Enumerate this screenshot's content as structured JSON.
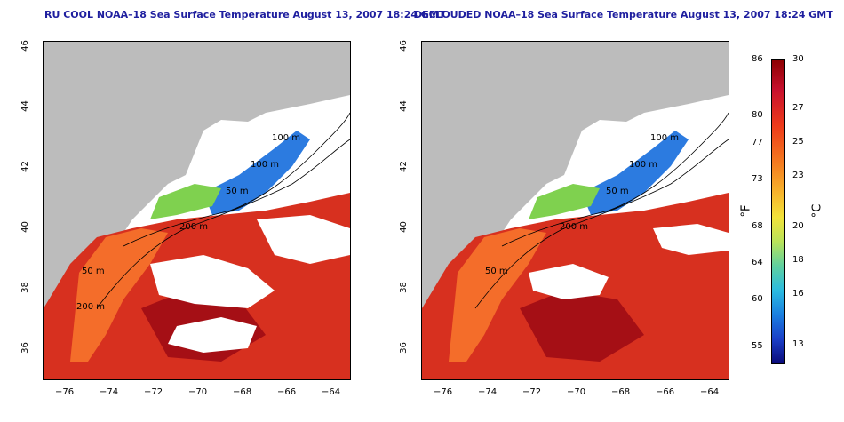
{
  "titles": {
    "left": "RU COOL NOAA–18 Sea Surface Temperature August 13, 2007 18:24 GMT",
    "right": "DECLOUDED NOAA–18 Sea Surface Temperature August 13, 2007 18:24 GMT"
  },
  "axes": {
    "x_ticks": [
      "−76",
      "−74",
      "−72",
      "−70",
      "−68",
      "−66",
      "−64"
    ],
    "y_ticks": [
      "36",
      "38",
      "40",
      "42",
      "44",
      "46"
    ]
  },
  "contour_labels": [
    "100 m",
    "100 m",
    "50 m",
    "200 m",
    "50 m",
    "200 m"
  ],
  "colorbar": {
    "fahrenheit_unit": "°F",
    "celsius_unit": "°C",
    "fahrenheit_ticks": [
      "86",
      "80",
      "77",
      "73",
      "68",
      "64",
      "60",
      "55"
    ],
    "celsius_ticks": [
      "30",
      "27",
      "25",
      "23",
      "20",
      "18",
      "16",
      "13"
    ]
  },
  "colors": {
    "land": "#bcbcbc",
    "cloud": "#ffffff",
    "title": "#1f1f9f",
    "warm": "#c8102e",
    "cool": "#1a3fc8"
  }
}
